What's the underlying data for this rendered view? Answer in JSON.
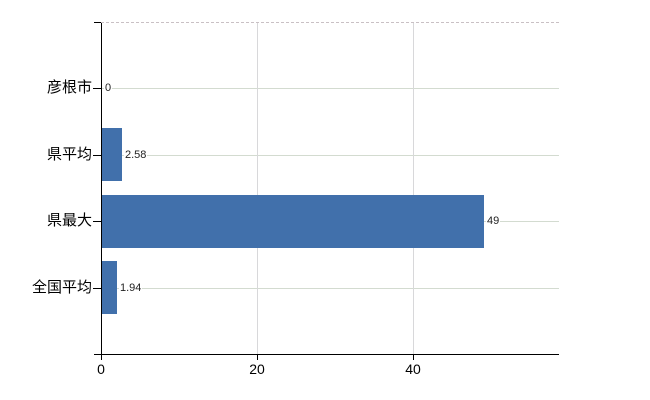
{
  "chart_data": {
    "type": "bar",
    "orientation": "horizontal",
    "title": "",
    "xlabel": "",
    "ylabel": "",
    "categories": [
      "彦根市",
      "県平均",
      "県最大",
      "全国平均"
    ],
    "values": [
      0,
      2.58,
      49,
      1.94
    ],
    "value_labels": [
      "0",
      "2.58",
      "49",
      "1.94"
    ],
    "x_ticks": [
      0,
      20,
      40
    ],
    "x_tick_labels": [
      "0",
      "20",
      "40"
    ],
    "xlim": [
      0,
      58.8
    ],
    "grid": true,
    "legend": false,
    "colors": {
      "bar": "#4170ab",
      "h_grid": "#d3dbd0",
      "v_grid": "#d8d8da",
      "axis": "#000000",
      "top_border": "#c9c0c4",
      "value_label_text": "#222222",
      "category_label_text": "#000000",
      "x_tick_label_text": "#000000"
    }
  }
}
